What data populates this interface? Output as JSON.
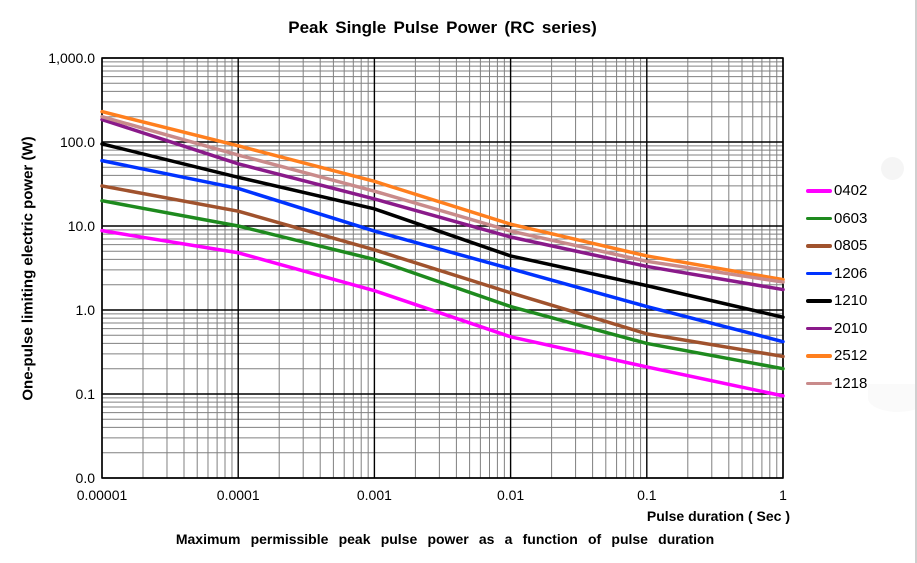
{
  "chart_data": {
    "type": "line",
    "title": "Peak Single Pulse Power (RC series)",
    "xlabel": "Pulse duration ( Sec )",
    "ylabel": "One-pulse limiting electric power (W)",
    "caption": "Maximum permissible peak pulse power as a function of pulse duration",
    "x_scale": "log",
    "y_scale": "log",
    "xlim": [
      1e-05,
      1
    ],
    "ylim": [
      0.01,
      1000
    ],
    "x_ticklabels": [
      "0.00001",
      "0.0001",
      "0.001",
      "0.01",
      "0.1",
      "1"
    ],
    "y_ticklabels": [
      "1,000.0",
      "100.0",
      "10.0",
      "1.0",
      "0.1",
      "0.0"
    ],
    "grid": "log major and minor gridlines on both axes",
    "legend_position": "right",
    "x": [
      1e-05,
      0.0001,
      0.001,
      0.01,
      0.1,
      1
    ],
    "series": [
      {
        "name": "0402",
        "color": "#FF00FF",
        "values": [
          8.8,
          4.8,
          1.7,
          0.48,
          0.21,
          0.095
        ]
      },
      {
        "name": "0603",
        "color": "#1E8A1E",
        "values": [
          20,
          10,
          4.0,
          1.1,
          0.4,
          0.2
        ]
      },
      {
        "name": "0805",
        "color": "#A0522D",
        "values": [
          30,
          15,
          5.2,
          1.6,
          0.52,
          0.28
        ]
      },
      {
        "name": "1206",
        "color": "#0033FF",
        "values": [
          60,
          28,
          8.7,
          3.1,
          1.1,
          0.42
        ]
      },
      {
        "name": "1210",
        "color": "#000000",
        "values": [
          95,
          38,
          16,
          4.4,
          1.95,
          0.82
        ]
      },
      {
        "name": "2010",
        "color": "#8A1A8A",
        "values": [
          185,
          55,
          21,
          7.4,
          3.3,
          1.75
        ]
      },
      {
        "name": "2512",
        "color": "#FF7F1E",
        "values": [
          230,
          90,
          34,
          10.5,
          4.4,
          2.3
        ]
      },
      {
        "name": "1218",
        "color": "#C98B8B",
        "values": [
          200,
          70,
          26,
          8.7,
          3.8,
          2.15
        ]
      }
    ],
    "style": {
      "major_grid_color": "#000000",
      "minor_grid_color": "#808080",
      "line_width": 3.5
    }
  }
}
